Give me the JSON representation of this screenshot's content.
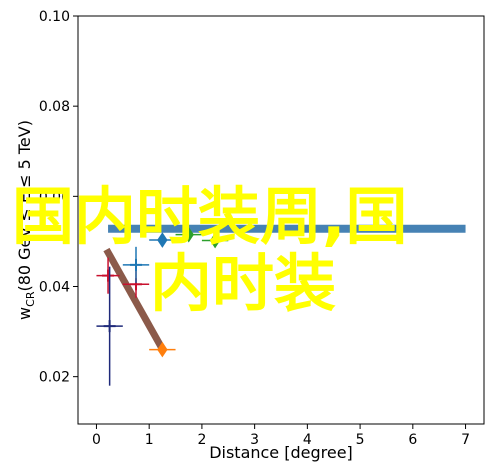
{
  "chart_data": {
    "type": "scatter",
    "xlabel": "Distance [degree]",
    "ylabel": {
      "main": "w",
      "sub": "CR",
      "rest": "(80 GeV ≤ E ≤ 5 TeV)"
    },
    "xlim": [
      -0.35,
      7.35
    ],
    "ylim": [
      0.0095,
      0.1
    ],
    "xticks": [
      0,
      1,
      2,
      3,
      4,
      5,
      6,
      7
    ],
    "yticks": [
      {
        "value": 0.02,
        "label": "0.02"
      },
      {
        "value": 0.04,
        "label": "0.04"
      },
      {
        "value": 0.06,
        "label": "0.06"
      },
      {
        "value": 0.08,
        "label": "0.08"
      },
      {
        "value": 0.1,
        "label": "0.10"
      }
    ],
    "series": [
      {
        "color": "#c8102e",
        "marker": "plus",
        "x": [
          0.22,
          0.75
        ],
        "values": [
          0.0424,
          0.0405
        ],
        "xerr": [
          0.22,
          0.25
        ],
        "yerr": [
          0.004,
          0.003
        ]
      },
      {
        "color": "#1f2a7a",
        "marker": "plus",
        "x": [
          0.25
        ],
        "values": [
          0.0312
        ],
        "xerr": [
          0.25
        ],
        "yerr": [
          0.0132
        ]
      },
      {
        "color": "#1f77b4",
        "marker": "plus",
        "x": [
          0.75
        ],
        "values": [
          0.0448
        ],
        "xerr": [
          0.25
        ],
        "yerr": [
          0.004
        ]
      },
      {
        "color": "#1f77b4",
        "marker": "diamond",
        "x": [
          1.25
        ],
        "values": [
          0.0503
        ],
        "xerr": [
          0.25
        ],
        "yerr": [
          0.0015
        ]
      },
      {
        "color": "#2ca02c",
        "marker": "diamond",
        "x": [
          1.75,
          2.25
        ],
        "values": [
          0.0515,
          0.0502
        ],
        "xerr": [
          0.25,
          0.25
        ],
        "yerr": [
          0.0015,
          0.0015
        ]
      },
      {
        "color": "#ff7f0e",
        "marker": "diamond",
        "x": [
          1.25
        ],
        "values": [
          0.026
        ],
        "xerr": [
          0.25
        ],
        "yerr": [
          0.001
        ]
      }
    ],
    "lines": [
      {
        "color": "#4682b4",
        "width": 8,
        "x": [
          0.22,
          7
        ],
        "values": [
          0.0528,
          0.0528
        ]
      },
      {
        "color": "#8b5a4a",
        "width": 7,
        "x": [
          0.19,
          1.28
        ],
        "values": [
          0.0482,
          0.0255
        ]
      }
    ],
    "overlay_text": [
      "国内时装周,国",
      "内时装"
    ]
  }
}
